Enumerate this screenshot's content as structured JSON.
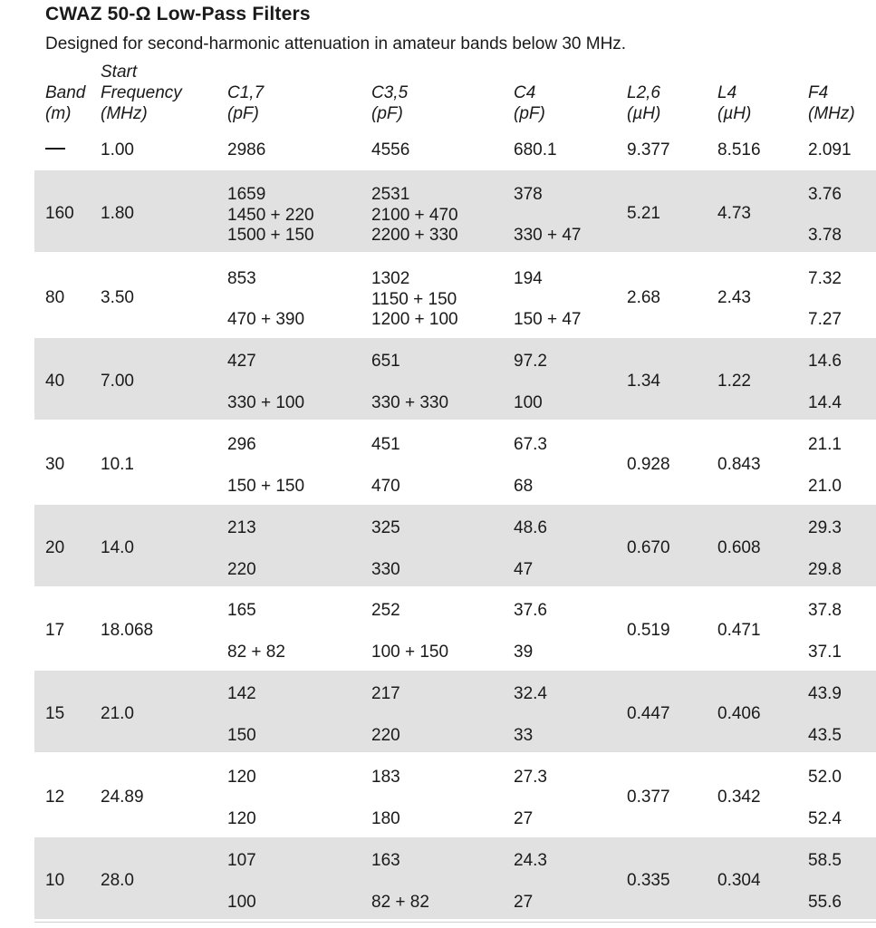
{
  "title": "CWAZ 50-Ω Low-Pass Filters",
  "subtitle": "Designed for second-harmonic attenuation in amateur bands below 30 MHz.",
  "headers": {
    "band": [
      "Band",
      "(m)"
    ],
    "start": [
      "Start",
      "Frequency",
      "(MHz)"
    ],
    "c17": [
      "C1,7",
      "(pF)"
    ],
    "c35": [
      "C3,5",
      "(pF)"
    ],
    "c4": [
      "C4",
      "(pF)"
    ],
    "l26": [
      "L2,6",
      "(µH)"
    ],
    "l4": [
      "L4",
      "(µH)"
    ],
    "f4": [
      "F4",
      "(MHz)"
    ]
  },
  "first_row": {
    "band": "—",
    "start": "1.00",
    "c17": "2986",
    "c35": "4556",
    "c4": "680.1",
    "l26": "9.377",
    "l4": "8.516",
    "f4": "2.091"
  },
  "rows": [
    {
      "band": "160",
      "start": "1.80",
      "c17": [
        "1659",
        "1450 + 220",
        "1500 + 150"
      ],
      "c35": [
        "2531",
        "2100 + 470",
        "2200 + 330"
      ],
      "c4": [
        "378",
        "330 + 47"
      ],
      "l26": "5.21",
      "l4": "4.73",
      "f4": [
        "3.76",
        "3.78"
      ]
    },
    {
      "band": "80",
      "start": "3.50",
      "c17": [
        "853",
        "470 + 390"
      ],
      "c35": [
        "1302",
        "1150 + 150",
        "1200 + 100"
      ],
      "c4": [
        "194",
        "150 + 47"
      ],
      "l26": "2.68",
      "l4": "2.43",
      "f4": [
        "7.32",
        "7.27"
      ]
    },
    {
      "band": "40",
      "start": "7.00",
      "c17": [
        "427",
        "330 + 100"
      ],
      "c35": [
        "651",
        "330 + 330"
      ],
      "c4": [
        "97.2",
        "100"
      ],
      "l26": "1.34",
      "l4": "1.22",
      "f4": [
        "14.6",
        "14.4"
      ]
    },
    {
      "band": "30",
      "start": "10.1",
      "c17": [
        "296",
        "150 + 150"
      ],
      "c35": [
        "451",
        "470"
      ],
      "c4": [
        "67.3",
        "68"
      ],
      "l26": "0.928",
      "l4": "0.843",
      "f4": [
        "21.1",
        "21.0"
      ]
    },
    {
      "band": "20",
      "start": "14.0",
      "c17": [
        "213",
        "220"
      ],
      "c35": [
        "325",
        "330"
      ],
      "c4": [
        "48.6",
        "47"
      ],
      "l26": "0.670",
      "l4": "0.608",
      "f4": [
        "29.3",
        "29.8"
      ]
    },
    {
      "band": "17",
      "start": "18.068",
      "c17": [
        "165",
        "82 + 82"
      ],
      "c35": [
        "252",
        "100 + 150"
      ],
      "c4": [
        "37.6",
        "39"
      ],
      "l26": "0.519",
      "l4": "0.471",
      "f4": [
        "37.8",
        "37.1"
      ]
    },
    {
      "band": "15",
      "start": "21.0",
      "c17": [
        "142",
        "150"
      ],
      "c35": [
        "217",
        "220"
      ],
      "c4": [
        "32.4",
        "33"
      ],
      "l26": "0.447",
      "l4": "0.406",
      "f4": [
        "43.9",
        "43.5"
      ]
    },
    {
      "band": "12",
      "start": "24.89",
      "c17": [
        "120",
        "120"
      ],
      "c35": [
        "183",
        "180"
      ],
      "c4": [
        "27.3",
        "27"
      ],
      "l26": "0.377",
      "l4": "0.342",
      "f4": [
        "52.0",
        "52.4"
      ]
    },
    {
      "band": "10",
      "start": "28.0",
      "c17": [
        "107",
        "100"
      ],
      "c35": [
        "163",
        "82 + 82"
      ],
      "c4": [
        "24.3",
        "27"
      ],
      "l26": "0.335",
      "l4": "0.304",
      "f4": [
        "58.5",
        "55.6"
      ]
    }
  ]
}
